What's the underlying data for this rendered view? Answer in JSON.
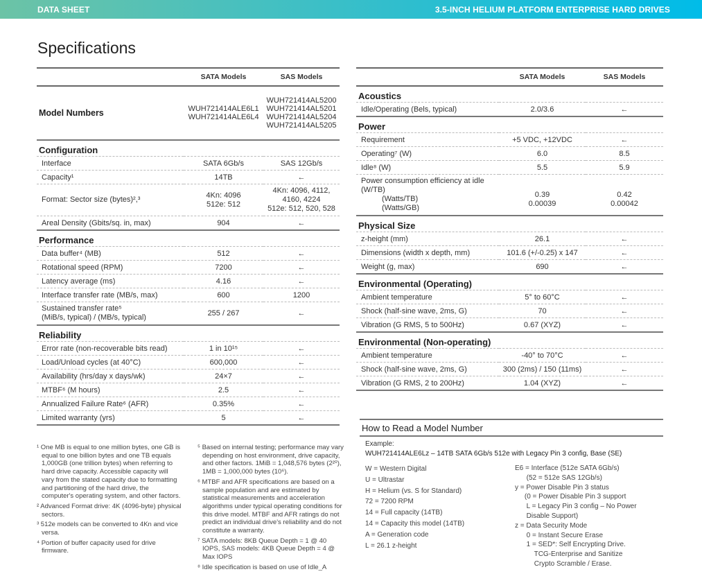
{
  "header": {
    "left": "DATA SHEET",
    "right": "3.5-INCH HELIUM PLATFORM ENTERPRISE HARD DRIVES",
    "gradient": [
      "#6cc3a6",
      "#00bce8"
    ]
  },
  "title": "Specifications",
  "left_table": {
    "columns": [
      "",
      "SATA Models",
      "SAS Models"
    ],
    "model_numbers": {
      "label": "Model Numbers",
      "sata": [
        "WUH721414ALE6L1",
        "WUH721414ALE6L4"
      ],
      "sas": [
        "WUH721414AL5200",
        "WUH721414AL5201",
        "WUH721414AL5204",
        "WUH721414AL5205"
      ]
    },
    "sections": [
      {
        "heading": "Configuration",
        "rows": [
          {
            "label": "Interface",
            "sata": "SATA 6Gb/s",
            "sas": "SAS 12Gb/s"
          },
          {
            "label": "Capacity¹",
            "sata": "14TB",
            "sas": "←"
          },
          {
            "label": "Format: Sector size (bytes)²,³",
            "sata": "4Kn: 4096\n512e: 512",
            "sas": "4Kn: 4096, 4112,\n4160, 4224\n512e: 512, 520, 528"
          },
          {
            "label": "Areal Density (Gbits/sq. in, max)",
            "sata": "904",
            "sas": "←"
          }
        ]
      },
      {
        "heading": "Performance",
        "rows": [
          {
            "label": "Data buffer⁴ (MB)",
            "sata": "512",
            "sas": "←"
          },
          {
            "label": "Rotational speed (RPM)",
            "sata": "7200",
            "sas": "←"
          },
          {
            "label": "Latency average (ms)",
            "sata": "4.16",
            "sas": "←"
          },
          {
            "label": "Interface transfer rate (MB/s, max)",
            "sata": "600",
            "sas": "1200"
          },
          {
            "label": "Sustained transfer rate⁵\n(MiB/s, typical) / (MB/s, typical)",
            "sata": "255 / 267",
            "sas": "←"
          }
        ]
      },
      {
        "heading": "Reliability",
        "rows": [
          {
            "label": "Error rate (non-recoverable bits read)",
            "sata": "1 in 10¹⁵",
            "sas": "←"
          },
          {
            "label": "Load/Unload cycles (at 40°C)",
            "sata": "600,000",
            "sas": "←"
          },
          {
            "label": "Availability (hrs/day x days/wk)",
            "sata": "24×7",
            "sas": "←"
          },
          {
            "label": "MTBF⁶ (M hours)",
            "sata": "2.5",
            "sas": "←"
          },
          {
            "label": "Annualized Failure Rate⁶ (AFR)",
            "sata": "0.35%",
            "sas": "←"
          },
          {
            "label": "Limited warranty (yrs)",
            "sata": "5",
            "sas": "←"
          }
        ]
      }
    ]
  },
  "right_table": {
    "columns": [
      "",
      "SATA Models",
      "SAS Models"
    ],
    "sections": [
      {
        "heading": "Acoustics",
        "rows": [
          {
            "label": "Idle/Operating  (Bels, typical)",
            "sata": "2.0/3.6",
            "sas": "←"
          }
        ]
      },
      {
        "heading": "Power",
        "rows": [
          {
            "label": "Requirement",
            "sata": "+5 VDC, +12VDC",
            "sas": "←"
          },
          {
            "label": "Operating⁷ (W)",
            "sata": "6.0",
            "sas": "8.5"
          },
          {
            "label": "Idle⁸ (W)",
            "sata": "5.5",
            "sas": "5.9"
          },
          {
            "label": "Power consumption efficiency at idle (W/TB)",
            "sublabels": [
              "(Watts/TB)",
              "(Watts/GB)"
            ],
            "sata": "\n0.39\n0.00039",
            "sas": "\n0.42\n0.00042"
          }
        ]
      },
      {
        "heading": "Physical Size",
        "rows": [
          {
            "label": "z-height (mm)",
            "sata": "26.1",
            "sas": "←"
          },
          {
            "label": "Dimensions (width x depth, mm)",
            "sata": "101.6 (+/-0.25) x 147",
            "sas": "←"
          },
          {
            "label": "Weight (g, max)",
            "sata": "690",
            "sas": "←"
          }
        ]
      },
      {
        "heading": "Environmental (Operating)",
        "rows": [
          {
            "label": "Ambient temperature",
            "sata": "5° to 60°C",
            "sas": "←"
          },
          {
            "label": "Shock (half-sine wave, 2ms, G)",
            "sata": "70",
            "sas": "←"
          },
          {
            "label": "Vibration (G RMS, 5 to 500Hz)",
            "sata": "0.67 (XYZ)",
            "sas": "←"
          }
        ]
      },
      {
        "heading": "Environmental (Non-operating)",
        "rows": [
          {
            "label": "Ambient temperature",
            "sata": "-40° to 70°C",
            "sas": "←"
          },
          {
            "label": "Shock (half-sine wave, 2ms, G)",
            "sata": "300 (2ms) / 150 (11ms)",
            "sas": "←"
          },
          {
            "label": "Vibration (G RMS, 2 to 200Hz)",
            "sata": "1.04 (XYZ)",
            "sas": "←"
          }
        ]
      }
    ]
  },
  "footnotes": {
    "col1": [
      "¹ One MB is equal to one million bytes, one GB is equal to one billion bytes and one TB equals 1,000GB (one trillion bytes) when referring to hard drive capacity. Accessible capacity will vary from the stated capacity due to formatting and partitioning of the hard drive, the computer's operating system, and other factors.",
      "² Advanced Format drive: 4K (4096-byte) physical sectors.",
      "³ 512e models can be converted to 4Kn and vice versa.",
      "⁴ Portion of buffer capacity used for drive firmware."
    ],
    "col2": [
      "⁵ Based on internal testing; performance may vary depending on host environment, drive capacity, and other factors.  1MiB = 1,048,576 bytes (2²⁰), 1MB = 1,000,000 bytes (10⁶).",
      "⁶ MTBF and AFR specifications are based on a sample population and are estimated by statistical measurements and acceleration algorithms under typical operating conditions for this drive model. MTBF and AFR ratings do not predict an individual drive's reliability and do not constitute a warranty.",
      "⁷ SATA models: 8KB Queue Depth = 1 @ 40 IOPS, SAS models: 4KB Queue Depth = 4 @ Max IOPS",
      "⁸ Idle specification is based on use of Idle_A"
    ]
  },
  "model_guide": {
    "heading": "How to Read a Model Number",
    "example_label": "Example:",
    "example": "WUH721414ALE6Lz – 14TB SATA 6Gb/s 512e with Legacy Pin 3 config, Base (SE)",
    "left": [
      "W = Western Digital",
      "U = Ultrastar",
      "H = Helium (vs. S for Standard)",
      "72 = 7200 RPM",
      "14 = Full capacity (14TB)",
      "14 = Capacity this model (14TB)",
      "A = Generation code",
      "L = 26.1 z-height"
    ],
    "right": [
      "E6 = Interface (512e SATA 6Gb/s)",
      "      (52 = 512e SAS 12Gb/s)",
      "y = Power Disable Pin 3 status",
      "     (0 = Power Disable Pin 3 support",
      "      L = Legacy Pin 3 config – No Power",
      "      Disable Support)",
      "z = Data Security Mode",
      "      0 = Instant Secure Erase",
      "      1 = SED*: Self Encrypting Drive.",
      "          TCG-Enterprise and Sanitize",
      "          Crypto Scramble / Erase."
    ]
  }
}
